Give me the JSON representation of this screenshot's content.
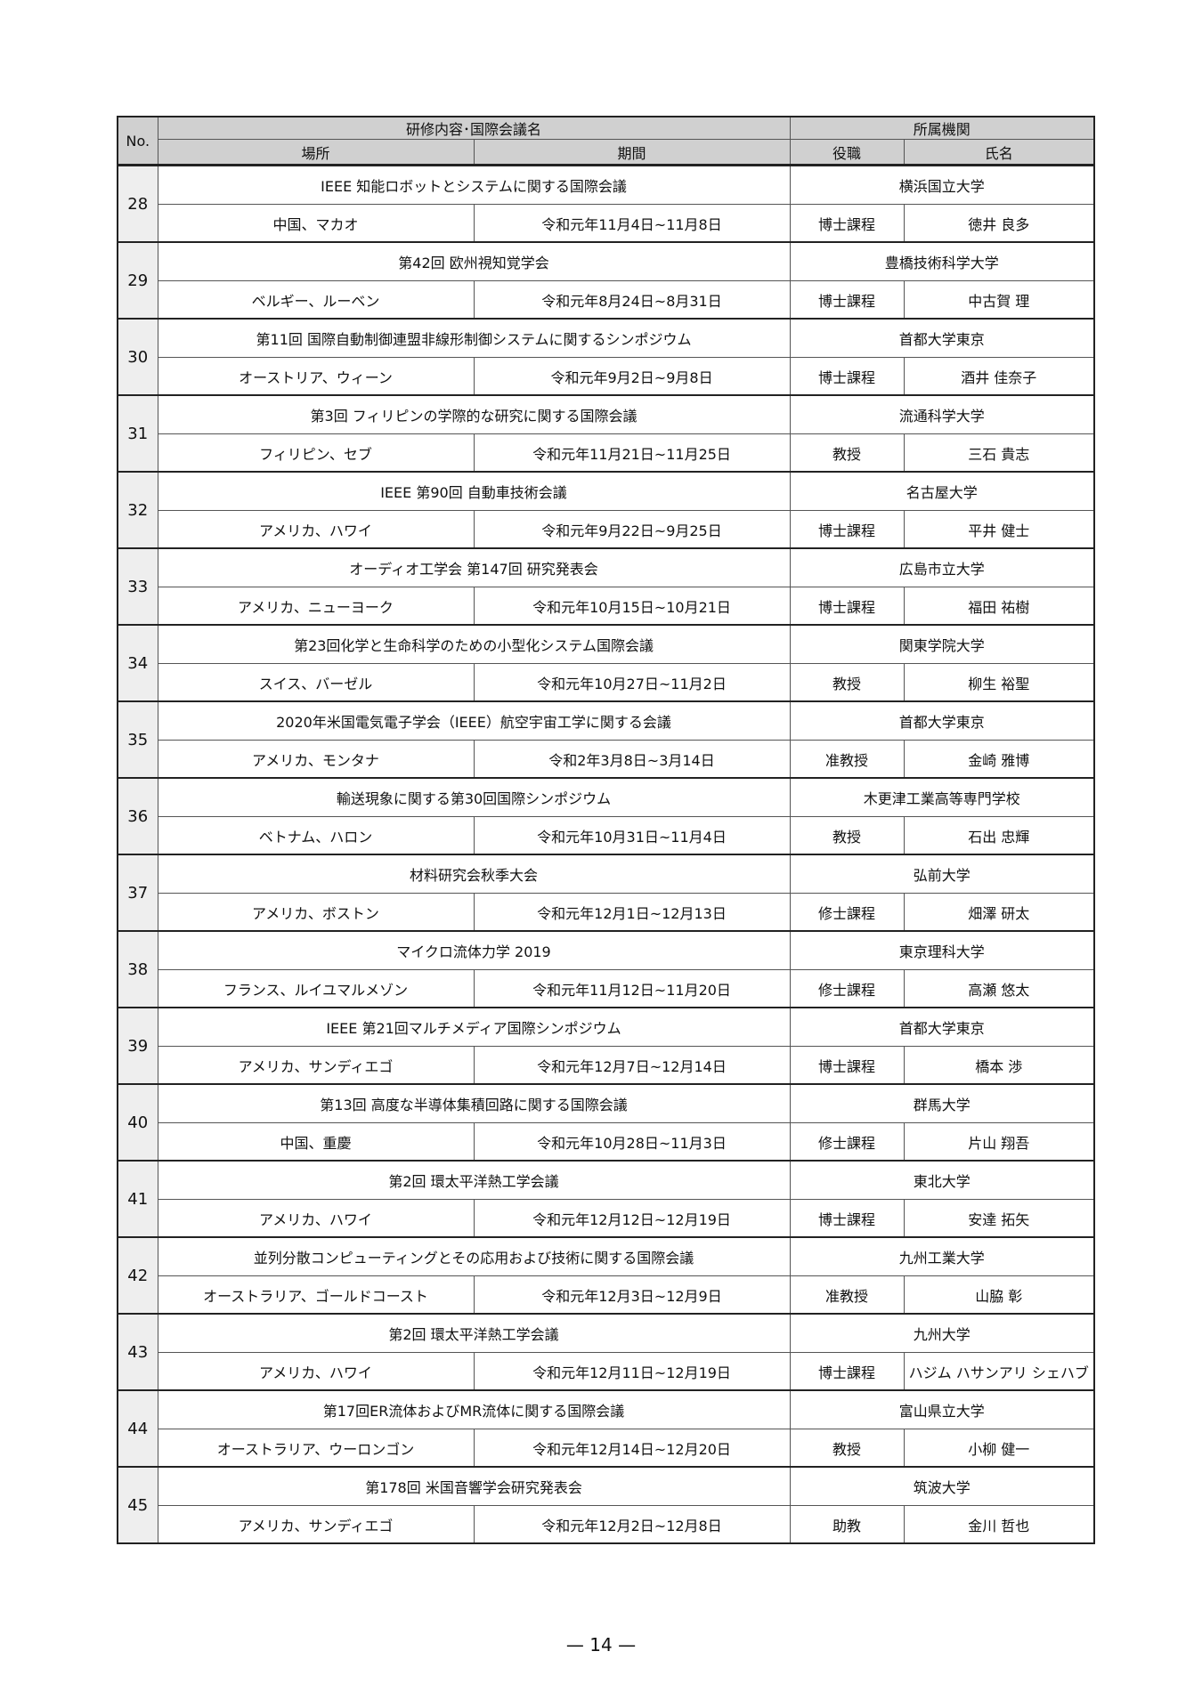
{
  "header": {
    "no": "No.",
    "training": "研修内容･国際会議名",
    "affiliation": "所属機関",
    "place": "場所",
    "period": "期間",
    "position": "役職",
    "name": "氏名"
  },
  "rows": [
    {
      "no": "28",
      "conference": "IEEE 知能ロボットとシステムに関する国際会議",
      "institution": "横浜国立大学",
      "place": "中国、マカオ",
      "period": "令和元年11月4日~11月8日",
      "position": "博士課程",
      "name": "徳井 良多"
    },
    {
      "no": "29",
      "conference": "第42回 欧州視知覚学会",
      "institution": "豊橋技術科学大学",
      "place": "ベルギー、ルーベン",
      "period": "令和元年8月24日~8月31日",
      "position": "博士課程",
      "name": "中古賀 理"
    },
    {
      "no": "30",
      "conference": "第11回 国際自動制御連盟非線形制御システムに関するシンポジウム",
      "institution": "首都大学東京",
      "place": "オーストリア、ウィーン",
      "period": "令和元年9月2日~9月8日",
      "position": "博士課程",
      "name": "酒井 佳奈子"
    },
    {
      "no": "31",
      "conference": "第3回 フィリピンの学際的な研究に関する国際会議",
      "institution": "流通科学大学",
      "place": "フィリピン、セブ",
      "period": "令和元年11月21日~11月25日",
      "position": "教授",
      "name": "三石 貴志"
    },
    {
      "no": "32",
      "conference": "IEEE 第90回 自動車技術会議",
      "institution": "名古屋大学",
      "place": "アメリカ、ハワイ",
      "period": "令和元年9月22日~9月25日",
      "position": "博士課程",
      "name": "平井 健士"
    },
    {
      "no": "33",
      "conference": "オーディオ工学会 第147回 研究発表会",
      "institution": "広島市立大学",
      "place": "アメリカ、ニューヨーク",
      "period": "令和元年10月15日~10月21日",
      "position": "博士課程",
      "name": "福田 祐樹"
    },
    {
      "no": "34",
      "conference": "第23回化学と生命科学のための小型化システム国際会議",
      "institution": "関東学院大学",
      "place": "スイス、バーゼル",
      "period": "令和元年10月27日~11月2日",
      "position": "教授",
      "name": "柳生 裕聖"
    },
    {
      "no": "35",
      "conference": "2020年米国電気電子学会（IEEE）航空宇宙工学に関する会議",
      "institution": "首都大学東京",
      "place": "アメリカ、モンタナ",
      "period": "令和2年3月8日~3月14日",
      "position": "准教授",
      "name": "金崎 雅博"
    },
    {
      "no": "36",
      "conference": "輸送現象に関する第30回国際シンポジウム",
      "institution": "木更津工業高等専門学校",
      "place": "ベトナム、ハロン",
      "period": "令和元年10月31日~11月4日",
      "position": "教授",
      "name": "石出 忠輝"
    },
    {
      "no": "37",
      "conference": "材料研究会秋季大会",
      "institution": "弘前大学",
      "place": "アメリカ、ボストン",
      "period": "令和元年12月1日~12月13日",
      "position": "修士課程",
      "name": "畑澤 研太"
    },
    {
      "no": "38",
      "conference": "マイクロ流体力学 2019",
      "institution": "東京理科大学",
      "place": "フランス、ルイユマルメゾン",
      "period": "令和元年11月12日~11月20日",
      "position": "修士課程",
      "name": "高瀬 悠太"
    },
    {
      "no": "39",
      "conference": "IEEE 第21回マルチメディア国際シンポジウム",
      "institution": "首都大学東京",
      "place": "アメリカ、サンディエゴ",
      "period": "令和元年12月7日~12月14日",
      "position": "博士課程",
      "name": "橋本 渉"
    },
    {
      "no": "40",
      "conference": "第13回 高度な半導体集積回路に関する国際会議",
      "institution": "群馬大学",
      "place": "中国、重慶",
      "period": "令和元年10月28日~11月3日",
      "position": "修士課程",
      "name": "片山 翔吾"
    },
    {
      "no": "41",
      "conference": "第2回 環太平洋熱工学会議",
      "institution": "東北大学",
      "place": "アメリカ、ハワイ",
      "period": "令和元年12月12日~12月19日",
      "position": "博士課程",
      "name": "安達 拓矢"
    },
    {
      "no": "42",
      "conference": "並列分散コンピューティングとその応用および技術に関する国際会議",
      "institution": "九州工業大学",
      "place": "オーストラリア、ゴールドコースト",
      "period": "令和元年12月3日~12月9日",
      "position": "准教授",
      "name": "山脇 彰"
    },
    {
      "no": "43",
      "conference": "第2回 環太平洋熱工学会議",
      "institution": "九州大学",
      "place": "アメリカ、ハワイ",
      "period": "令和元年12月11日~12月19日",
      "position": "博士課程",
      "name": "ハジム ハサンアリ シェハブ"
    },
    {
      "no": "44",
      "conference": "第17回ER流体およびMR流体に関する国際会議",
      "institution": "富山県立大学",
      "place": "オーストラリア、ウーロンゴン",
      "period": "令和元年12月14日~12月20日",
      "position": "教授",
      "name": "小柳 健一"
    },
    {
      "no": "45",
      "conference": "第178回 米国音響学会研究発表会",
      "institution": "筑波大学",
      "place": "アメリカ、サンディエゴ",
      "period": "令和元年12月2日~12月8日",
      "position": "助教",
      "name": "金川 哲也"
    }
  ],
  "page_number": "— 14 —"
}
